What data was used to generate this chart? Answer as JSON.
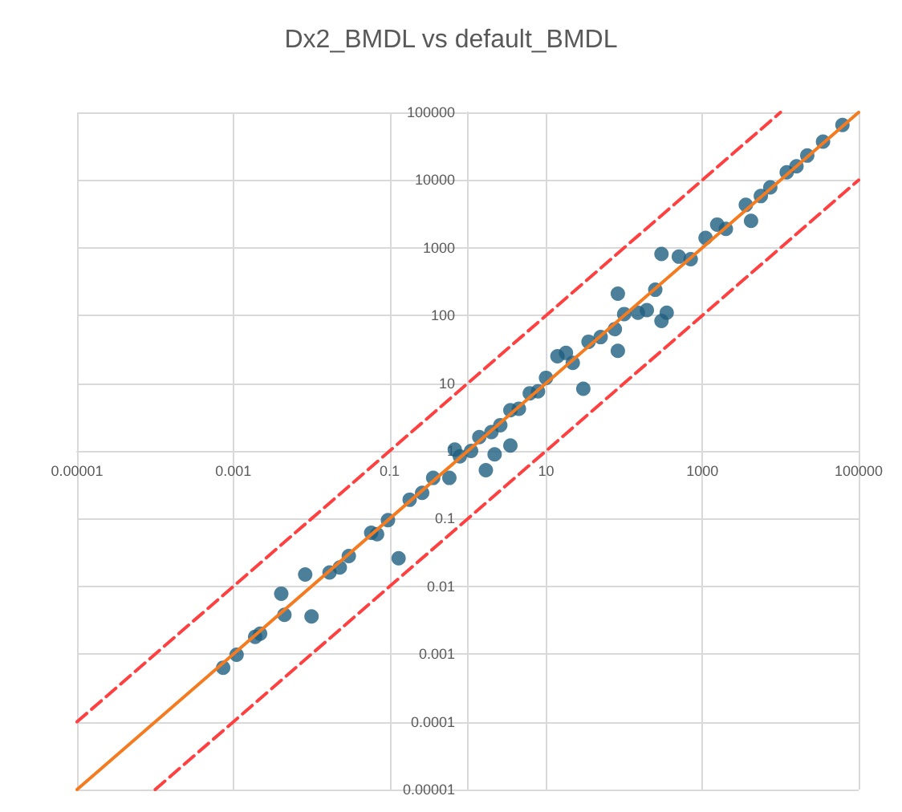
{
  "chart_data": {
    "type": "scatter",
    "title": "Dx2_BMDL vs default_BMDL",
    "log": "xy",
    "grid": true,
    "marker": "circle",
    "xlim": [
      1e-05,
      100000
    ],
    "xticks": [
      {
        "value": 1e-05,
        "label": "0.00001"
      },
      0.001,
      0.1,
      10,
      1000,
      100000
    ],
    "ylim": [
      1e-05,
      100000
    ],
    "yticks": [
      {
        "value": 1e-05,
        "label": "0.00001"
      },
      0.0001,
      0.001,
      0.01,
      0.1,
      1,
      10,
      100,
      1000,
      10000,
      100000
    ],
    "series": [
      {
        "color": "#1f5f80",
        "x": [
          0.00074,
          0.0011,
          0.0019,
          0.0022,
          0.0041,
          0.0045,
          0.0083,
          0.01,
          0.017,
          0.023,
          0.03,
          0.058,
          0.069,
          0.095,
          0.13,
          0.18,
          0.26,
          0.36,
          0.58,
          0.68,
          0.79,
          1.1,
          1.4,
          2,
          1.7,
          2.2,
          3.5,
          2.6,
          3.5,
          4.5,
          6.2,
          7.9,
          10,
          14,
          30,
          18,
          22,
          35,
          50,
          83,
          76,
          100,
          150,
          83,
          195,
          350,
          300,
          300,
          500,
          250,
          710,
          1100,
          1550,
          2000,
          4200,
          3600,
          5600,
          7400,
          12000,
          16000,
          22000,
          35000,
          62000
        ],
        "values": [
          0.00063,
          0.00098,
          0.0018,
          0.002,
          0.0078,
          0.0038,
          0.015,
          0.0036,
          0.016,
          0.019,
          0.028,
          0.062,
          0.059,
          0.095,
          0.026,
          0.19,
          0.24,
          0.4,
          0.4,
          1.05,
          0.83,
          1,
          1.6,
          1.9,
          0.52,
          0.89,
          1.2,
          2.4,
          4,
          4.2,
          7.1,
          7.6,
          12,
          25,
          8.3,
          28,
          20,
          41,
          48,
          30,
          63,
          105,
          110,
          210,
          120,
          110,
          83,
          810,
          740,
          240,
          680,
          1400,
          2200,
          1900,
          2500,
          4300,
          5800,
          7800,
          13000,
          16000,
          23000,
          37000,
          65000
        ]
      },
      {
        "type": "line",
        "color": "#f47b20",
        "marker": "none",
        "x": [
          1e-05,
          100000
        ],
        "values": [
          1e-05,
          100000
        ]
      },
      {
        "type": "line",
        "color": "#ff4040",
        "marker": "none",
        "line_style": "dashed",
        "x": [
          1e-05,
          10000
        ],
        "values": [
          0.0001,
          100000
        ]
      },
      {
        "type": "line",
        "color": "#ff4040",
        "marker": "none",
        "line_style": "dashed",
        "x": [
          0.0001,
          100000
        ],
        "values": [
          1e-05,
          10000
        ]
      }
    ]
  }
}
